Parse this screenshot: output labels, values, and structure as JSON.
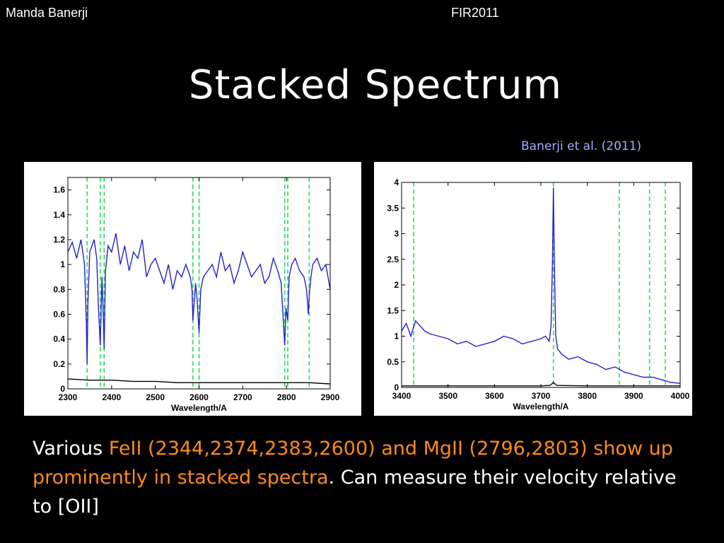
{
  "header": {
    "author": "Manda Banerji",
    "conference": "FIR2011"
  },
  "title": "Stacked Spectrum",
  "citation": "Banerji et al. (2011)",
  "caption": {
    "prefix": "Various ",
    "highlight": "FeII (2344,2374,2383,2600) and MgII (2796,2803) show up prominently in stacked spectra",
    "suffix": ". Can measure their velocity relative to [OII]"
  },
  "colors": {
    "spectrum": "#2222cc",
    "error": "#000000",
    "lines": "#22dd55",
    "highlight": "#ff8a1a",
    "citation": "#9fb0ff"
  },
  "chart_data": [
    {
      "type": "line",
      "xlabel": "Wavelength/A",
      "ylabel": "",
      "xlim": [
        2300,
        2900
      ],
      "ylim": [
        0,
        1.7
      ],
      "xticks": [
        2300,
        2400,
        2500,
        2600,
        2700,
        2800,
        2900
      ],
      "yticks": [
        0,
        0.2,
        0.4,
        0.6,
        0.8,
        1,
        1.2,
        1.4,
        1.6
      ],
      "ytick_labels": [
        "0",
        "0.2",
        "0.4",
        "0.6",
        "0.8",
        "1",
        "1.2",
        "1.4",
        "1.6"
      ],
      "grid": false,
      "line_markers": [
        2344,
        2374,
        2383,
        2586,
        2600,
        2796,
        2803,
        2852
      ],
      "series": [
        {
          "role": "spectrum",
          "x": [
            2300,
            2310,
            2320,
            2330,
            2338,
            2342,
            2344,
            2346,
            2350,
            2360,
            2366,
            2370,
            2374,
            2378,
            2380,
            2383,
            2386,
            2392,
            2400,
            2410,
            2420,
            2430,
            2440,
            2450,
            2460,
            2470,
            2480,
            2490,
            2500,
            2510,
            2520,
            2530,
            2540,
            2550,
            2560,
            2570,
            2580,
            2584,
            2586,
            2588,
            2592,
            2596,
            2600,
            2604,
            2610,
            2620,
            2630,
            2640,
            2650,
            2660,
            2670,
            2680,
            2690,
            2700,
            2710,
            2720,
            2730,
            2740,
            2750,
            2760,
            2770,
            2780,
            2788,
            2792,
            2796,
            2799,
            2803,
            2806,
            2812,
            2820,
            2830,
            2840,
            2846,
            2850,
            2852,
            2856,
            2860,
            2870,
            2880,
            2890,
            2900
          ],
          "y": [
            1.1,
            1.18,
            1.05,
            1.2,
            1.0,
            0.55,
            0.2,
            0.7,
            1.1,
            1.2,
            1.05,
            0.65,
            0.35,
            0.9,
            0.7,
            0.32,
            0.95,
            1.15,
            1.1,
            1.25,
            1.0,
            1.15,
            0.95,
            1.1,
            1.05,
            1.2,
            0.9,
            1.0,
            1.05,
            0.95,
            0.85,
            1.0,
            0.8,
            0.95,
            0.9,
            1.0,
            0.9,
            0.8,
            0.55,
            0.65,
            0.85,
            0.7,
            0.45,
            0.8,
            0.9,
            0.95,
            1.0,
            0.9,
            1.1,
            0.95,
            1.0,
            0.85,
            0.95,
            1.1,
            1.0,
            0.9,
            0.95,
            1.0,
            0.85,
            0.9,
            1.05,
            0.95,
            0.85,
            0.6,
            0.35,
            0.65,
            0.55,
            0.9,
            1.0,
            1.05,
            0.95,
            0.9,
            0.8,
            0.6,
            0.75,
            0.9,
            1.0,
            1.05,
            0.95,
            1.0,
            0.8
          ]
        },
        {
          "role": "error",
          "x": [
            2300,
            2350,
            2400,
            2450,
            2500,
            2550,
            2600,
            2650,
            2700,
            2750,
            2800,
            2850,
            2900
          ],
          "y": [
            0.08,
            0.07,
            0.07,
            0.06,
            0.06,
            0.05,
            0.05,
            0.05,
            0.05,
            0.05,
            0.05,
            0.05,
            0.04
          ]
        }
      ]
    },
    {
      "type": "line",
      "xlabel": "Wavelength/A",
      "ylabel": "",
      "xlim": [
        3400,
        4000
      ],
      "ylim": [
        0,
        4
      ],
      "xticks": [
        3400,
        3500,
        3600,
        3700,
        3800,
        3900,
        4000
      ],
      "yticks": [
        0,
        0.5,
        1,
        1.5,
        2,
        2.5,
        3,
        3.5,
        4
      ],
      "ytick_labels": [
        "0",
        "0.5",
        "1",
        "1.5",
        "2",
        "2.5",
        "3",
        "3.5",
        "4"
      ],
      "grid": false,
      "line_markers": [
        3426,
        3727,
        3869,
        3934,
        3968
      ],
      "series": [
        {
          "role": "spectrum",
          "x": [
            3400,
            3410,
            3420,
            3430,
            3440,
            3450,
            3460,
            3480,
            3500,
            3520,
            3540,
            3560,
            3580,
            3600,
            3620,
            3640,
            3660,
            3680,
            3700,
            3710,
            3718,
            3722,
            3725,
            3727,
            3729,
            3732,
            3736,
            3745,
            3760,
            3780,
            3800,
            3820,
            3840,
            3860,
            3880,
            3900,
            3920,
            3940,
            3960,
            3980,
            4000
          ],
          "y": [
            1.1,
            1.25,
            1.0,
            1.3,
            1.2,
            1.1,
            1.05,
            1.0,
            0.95,
            0.85,
            0.9,
            0.8,
            0.85,
            0.9,
            1.0,
            0.95,
            0.85,
            0.9,
            0.95,
            1.0,
            0.9,
            1.2,
            2.5,
            3.9,
            2.5,
            1.0,
            0.75,
            0.65,
            0.55,
            0.6,
            0.5,
            0.45,
            0.35,
            0.4,
            0.3,
            0.25,
            0.2,
            0.2,
            0.15,
            0.1,
            0.08
          ]
        },
        {
          "role": "error",
          "x": [
            3400,
            3500,
            3600,
            3700,
            3720,
            3727,
            3734,
            3800,
            3900,
            4000
          ],
          "y": [
            0.03,
            0.03,
            0.03,
            0.03,
            0.04,
            0.1,
            0.04,
            0.03,
            0.03,
            0.03
          ]
        }
      ]
    }
  ]
}
